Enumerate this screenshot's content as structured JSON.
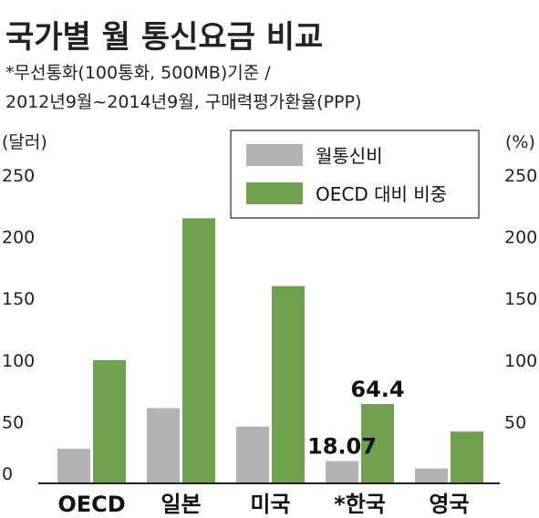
{
  "title": "국가별 월 통신요금 비교",
  "subtitle_lines": [
    "*무선통화(100통화, 500MB)기준 /",
    "2012년9월~2014년9월, 구매력평가환율(PPP)"
  ],
  "colors": {
    "series1": "#b3b3b3",
    "series2": "#6fa14f",
    "axis": "#222222"
  },
  "chart_data": {
    "type": "bar",
    "categories": [
      "OECD",
      "일본",
      "미국",
      "*한국",
      "영국"
    ],
    "series": [
      {
        "name": "월통신비",
        "axis": "left",
        "values": [
          28,
          61,
          46,
          18.07,
          12
        ]
      },
      {
        "name": "OECD 대비 비중",
        "axis": "right",
        "values": [
          100,
          215,
          160,
          64.4,
          42
        ]
      }
    ],
    "left_axis": {
      "label": "(달러)",
      "ticks": [
        "0",
        "50",
        "100",
        "150",
        "200",
        "250"
      ],
      "ylim": [
        0,
        250
      ]
    },
    "right_axis": {
      "label": "(%)",
      "ticks": [
        "50",
        "100",
        "150",
        "200",
        "250"
      ],
      "ylim": [
        0,
        250
      ]
    },
    "data_labels": [
      {
        "series": 0,
        "category": 3,
        "text": "18.07"
      },
      {
        "series": 1,
        "category": 3,
        "text": "64.4"
      }
    ],
    "legend_position": "top-right",
    "grid": false
  }
}
